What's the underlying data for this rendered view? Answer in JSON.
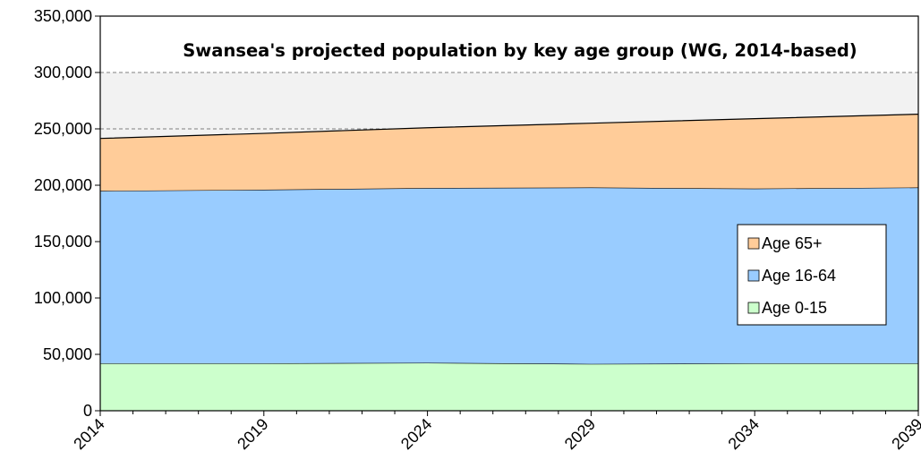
{
  "chart_data": {
    "type": "area",
    "stacked": true,
    "title": "Swansea's projected population by key age group (WG, 2014-based)",
    "xlabel": "",
    "ylabel": "",
    "x": [
      2014,
      2019,
      2024,
      2029,
      2034,
      2039
    ],
    "x_tick_labels": [
      "2014",
      "2019",
      "2024",
      "2029",
      "2034",
      "2039"
    ],
    "ylim": [
      0,
      350000
    ],
    "y_ticks": [
      0,
      50000,
      100000,
      150000,
      200000,
      250000,
      300000,
      350000
    ],
    "y_tick_labels": [
      "0",
      "50,000",
      "100,000",
      "150,000",
      "200,000",
      "250,000",
      "300,000",
      "350,000"
    ],
    "grid": "horizontal dashed at 250,000 and 300,000",
    "legend_position": "right",
    "series": [
      {
        "name": "Age 0-15",
        "color": "#CCFFCC",
        "values": [
          42000,
          42000,
          42500,
          41500,
          42000,
          42000
        ]
      },
      {
        "name": "Age 16-64",
        "color": "#99CCFF",
        "values": [
          153000,
          154000,
          155000,
          156500,
          155000,
          156000
        ]
      },
      {
        "name": "Age 65+",
        "color": "#FFCC99",
        "values": [
          46500,
          50000,
          53500,
          57000,
          62000,
          65000
        ]
      }
    ],
    "legend_order": [
      "Age 65+",
      "Age 16-64",
      "Age 0-15"
    ]
  }
}
